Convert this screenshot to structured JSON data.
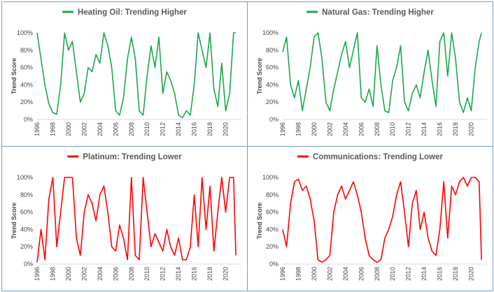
{
  "chart_data": [
    {
      "type": "line",
      "title": "Heating Oil: Trending Higher",
      "ylabel": "Trend Score",
      "ylim": [
        0,
        100
      ],
      "xlim": [
        1996,
        2022
      ],
      "yticks": [
        "0%",
        "20%",
        "40%",
        "60%",
        "80%",
        "100%"
      ],
      "xticks": [
        "1996",
        "1998",
        "2000",
        "2002",
        "2004",
        "2006",
        "2008",
        "2010",
        "2012",
        "2014",
        "2016",
        "2018",
        "2020"
      ],
      "color": "#1aa84b",
      "x": [
        1996.0,
        1996.5,
        1997.0,
        1997.5,
        1998.0,
        1998.5,
        1999.0,
        1999.5,
        2000.0,
        2000.5,
        2001.0,
        2001.5,
        2002.0,
        2002.5,
        2003.0,
        2003.5,
        2004.0,
        2004.5,
        2005.0,
        2005.5,
        2006.0,
        2006.5,
        2007.0,
        2007.5,
        2008.0,
        2008.5,
        2009.0,
        2009.5,
        2010.0,
        2010.5,
        2011.0,
        2011.5,
        2012.0,
        2012.5,
        2013.0,
        2013.5,
        2014.0,
        2014.5,
        2015.0,
        2015.5,
        2016.0,
        2016.5,
        2017.0,
        2017.5,
        2018.0,
        2018.5,
        2019.0,
        2019.5,
        2020.0,
        2020.5,
        2021.0,
        2021.3
      ],
      "y": [
        100,
        70,
        40,
        18,
        8,
        6,
        40,
        100,
        80,
        90,
        55,
        20,
        30,
        60,
        55,
        75,
        65,
        100,
        85,
        60,
        10,
        5,
        25,
        70,
        95,
        70,
        10,
        5,
        50,
        85,
        60,
        95,
        30,
        55,
        45,
        30,
        5,
        2,
        10,
        5,
        40,
        100,
        80,
        60,
        100,
        35,
        15,
        65,
        10,
        30,
        100,
        100
      ]
    },
    {
      "type": "line",
      "title": "Natural Gas: Trending Higher",
      "ylabel": "Trend Score",
      "ylim": [
        0,
        100
      ],
      "xlim": [
        1996,
        2022
      ],
      "yticks": [
        "0%",
        "20%",
        "40%",
        "60%",
        "80%",
        "100%"
      ],
      "xticks": [
        "1996",
        "1998",
        "2000",
        "2002",
        "2004",
        "2006",
        "2008",
        "2010",
        "2012",
        "2014",
        "2016",
        "2018",
        "2020"
      ],
      "color": "#1aa84b",
      "x": [
        1996.0,
        1996.5,
        1997.0,
        1997.5,
        1998.0,
        1998.5,
        1999.0,
        1999.5,
        2000.0,
        2000.5,
        2001.0,
        2001.5,
        2002.0,
        2002.5,
        2003.0,
        2003.5,
        2004.0,
        2004.5,
        2005.0,
        2005.5,
        2006.0,
        2006.5,
        2007.0,
        2007.5,
        2008.0,
        2008.5,
        2009.0,
        2009.5,
        2010.0,
        2010.5,
        2011.0,
        2011.5,
        2012.0,
        2012.5,
        2013.0,
        2013.5,
        2014.0,
        2014.5,
        2015.0,
        2015.5,
        2016.0,
        2016.5,
        2017.0,
        2017.5,
        2018.0,
        2018.5,
        2019.0,
        2019.5,
        2020.0,
        2020.5,
        2021.0,
        2021.3
      ],
      "y": [
        78,
        95,
        40,
        25,
        45,
        10,
        35,
        60,
        95,
        100,
        70,
        20,
        10,
        35,
        55,
        75,
        90,
        60,
        80,
        100,
        25,
        20,
        35,
        15,
        85,
        40,
        10,
        8,
        45,
        60,
        85,
        20,
        10,
        30,
        40,
        25,
        55,
        80,
        45,
        15,
        90,
        100,
        50,
        100,
        70,
        20,
        8,
        25,
        10,
        60,
        90,
        100
      ]
    },
    {
      "type": "line",
      "title": "Platinum: Trending Lower",
      "ylabel": "Trend Score",
      "ylim": [
        0,
        100
      ],
      "xlim": [
        1996,
        2022
      ],
      "yticks": [
        "0%",
        "20%",
        "40%",
        "60%",
        "80%",
        "100%"
      ],
      "xticks": [
        "1996",
        "1998",
        "2000",
        "2002",
        "2004",
        "2006",
        "2008",
        "2010",
        "2012",
        "2014",
        "2016",
        "2018",
        "2020"
      ],
      "color": "#ff0000",
      "x": [
        1996.0,
        1996.5,
        1997.0,
        1997.5,
        1998.0,
        1998.5,
        1999.0,
        1999.5,
        2000.0,
        2000.5,
        2001.0,
        2001.5,
        2002.0,
        2002.5,
        2003.0,
        2003.5,
        2004.0,
        2004.5,
        2005.0,
        2005.5,
        2006.0,
        2006.5,
        2007.0,
        2007.5,
        2008.0,
        2008.5,
        2009.0,
        2009.5,
        2010.0,
        2010.5,
        2011.0,
        2011.5,
        2012.0,
        2012.5,
        2013.0,
        2013.5,
        2014.0,
        2014.5,
        2015.0,
        2015.5,
        2016.0,
        2016.5,
        2017.0,
        2017.5,
        2018.0,
        2018.5,
        2019.0,
        2019.5,
        2020.0,
        2020.5,
        2021.0,
        2021.3
      ],
      "y": [
        2,
        40,
        5,
        75,
        100,
        20,
        60,
        100,
        100,
        100,
        30,
        10,
        60,
        80,
        70,
        50,
        80,
        90,
        60,
        20,
        15,
        45,
        30,
        5,
        100,
        10,
        5,
        100,
        60,
        20,
        35,
        25,
        15,
        40,
        20,
        10,
        30,
        5,
        5,
        20,
        80,
        20,
        100,
        40,
        90,
        15,
        60,
        100,
        60,
        100,
        100,
        10
      ]
    },
    {
      "type": "line",
      "title": "Communications: Trending Lower",
      "ylabel": "Trend Score",
      "ylim": [
        0,
        100
      ],
      "xlim": [
        1996,
        2022
      ],
      "yticks": [
        "0%",
        "20%",
        "40%",
        "60%",
        "80%",
        "100%"
      ],
      "xticks": [
        "1996",
        "1998",
        "2000",
        "2002",
        "2004",
        "2006",
        "2008",
        "2010",
        "2012",
        "2014",
        "2016",
        "2018",
        "2020"
      ],
      "color": "#ff0000",
      "x": [
        1996.0,
        1996.5,
        1997.0,
        1997.5,
        1998.0,
        1998.5,
        1999.0,
        1999.5,
        2000.0,
        2000.5,
        2001.0,
        2001.5,
        2002.0,
        2002.5,
        2003.0,
        2003.5,
        2004.0,
        2004.5,
        2005.0,
        2005.5,
        2006.0,
        2006.5,
        2007.0,
        2007.5,
        2008.0,
        2008.5,
        2009.0,
        2009.5,
        2010.0,
        2010.5,
        2011.0,
        2011.5,
        2012.0,
        2012.5,
        2013.0,
        2013.5,
        2014.0,
        2014.5,
        2015.0,
        2015.5,
        2016.0,
        2016.5,
        2017.0,
        2017.5,
        2018.0,
        2018.5,
        2019.0,
        2019.5,
        2020.0,
        2020.5,
        2021.0,
        2021.3
      ],
      "y": [
        40,
        20,
        70,
        95,
        98,
        85,
        90,
        75,
        50,
        5,
        2,
        5,
        10,
        60,
        80,
        90,
        75,
        85,
        95,
        80,
        60,
        30,
        10,
        5,
        2,
        5,
        30,
        40,
        55,
        80,
        95,
        60,
        20,
        70,
        85,
        40,
        60,
        30,
        15,
        10,
        40,
        95,
        30,
        90,
        80,
        95,
        100,
        90,
        100,
        100,
        95,
        5
      ]
    }
  ]
}
